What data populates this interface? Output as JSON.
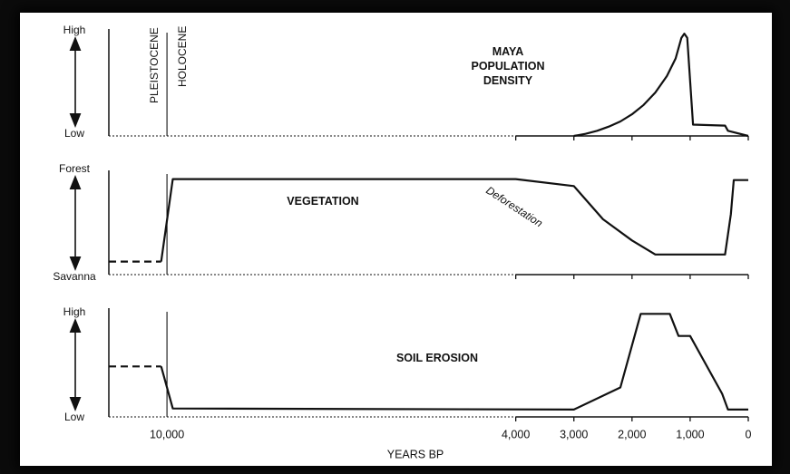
{
  "colors": {
    "background": "#000000",
    "paper": "#ffffff",
    "ink": "#111111"
  },
  "chart_data": {
    "type": "line",
    "xlabel": "YEARS BP",
    "x_tick_labels": [
      "10,000",
      "4,000",
      "3,000",
      "2,000",
      "1,000",
      "0"
    ],
    "x_ticks_years": [
      10000,
      4000,
      3000,
      2000,
      1000,
      0
    ],
    "xlim": [
      11000,
      0
    ],
    "period_labels": [
      "PLEISTOCENE",
      "HOLOCENE"
    ],
    "period_boundary_year": 10000,
    "panels": [
      {
        "id": "population",
        "series_label": "MAYA POPULATION DENSITY",
        "series_label_lines": [
          "MAYA",
          "POPULATION",
          "DENSITY"
        ],
        "y_top_label": "High",
        "y_bottom_label": "Low",
        "ylim": [
          0,
          1
        ],
        "series": [
          {
            "points": [
              [
                3000,
                0.0
              ],
              [
                2800,
                0.02
              ],
              [
                2600,
                0.05
              ],
              [
                2400,
                0.09
              ],
              [
                2200,
                0.14
              ],
              [
                2000,
                0.21
              ],
              [
                1800,
                0.3
              ],
              [
                1600,
                0.42
              ],
              [
                1400,
                0.58
              ],
              [
                1250,
                0.75
              ],
              [
                1150,
                0.95
              ],
              [
                1100,
                0.99
              ],
              [
                1050,
                0.95
              ],
              [
                950,
                0.11
              ],
              [
                400,
                0.1
              ],
              [
                350,
                0.05
              ],
              [
                0,
                0.0
              ]
            ]
          }
        ]
      },
      {
        "id": "vegetation",
        "series_label": "VEGETATION",
        "annotation": "Deforestation",
        "y_top_label": "Forest",
        "y_bottom_label": "Savanna",
        "ylim": [
          0,
          1
        ],
        "series": [
          {
            "style": "dashed",
            "points": [
              [
                11000,
                0.13
              ],
              [
                10100,
                0.13
              ]
            ]
          },
          {
            "style": "solid",
            "points": [
              [
                10100,
                0.13
              ],
              [
                9900,
                0.95
              ],
              [
                4000,
                0.95
              ],
              [
                3000,
                0.88
              ],
              [
                2500,
                0.55
              ],
              [
                2000,
                0.34
              ],
              [
                1600,
                0.2
              ],
              [
                400,
                0.2
              ],
              [
                300,
                0.6
              ],
              [
                250,
                0.94
              ],
              [
                0,
                0.94
              ]
            ]
          }
        ]
      },
      {
        "id": "soil",
        "series_label": "SOIL EROSION",
        "y_top_label": "High",
        "y_bottom_label": "Low",
        "ylim": [
          0,
          1
        ],
        "series": [
          {
            "style": "dashed",
            "points": [
              [
                11000,
                0.48
              ],
              [
                10100,
                0.48
              ]
            ]
          },
          {
            "style": "solid",
            "points": [
              [
                10100,
                0.48
              ],
              [
                9900,
                0.08
              ],
              [
                3000,
                0.07
              ],
              [
                2200,
                0.28
              ],
              [
                1850,
                0.98
              ],
              [
                1350,
                0.98
              ],
              [
                1200,
                0.77
              ],
              [
                1000,
                0.77
              ],
              [
                450,
                0.22
              ],
              [
                350,
                0.07
              ],
              [
                0,
                0.07
              ]
            ]
          }
        ]
      }
    ]
  }
}
